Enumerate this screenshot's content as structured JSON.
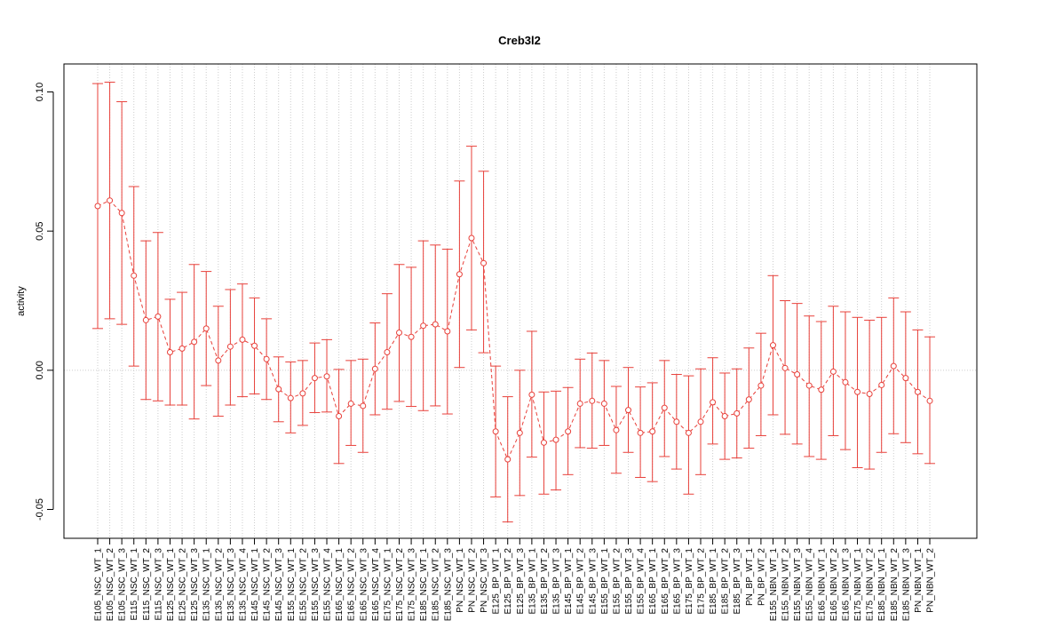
{
  "chart_data": {
    "type": "line",
    "title": "Creb3l2",
    "xlabel": "",
    "ylabel": "activity",
    "ylim": [
      -0.06,
      0.11
    ],
    "yticks": [
      -0.05,
      0.0,
      0.05,
      0.1
    ],
    "ytick_labels": [
      "-0.05",
      "0.00",
      "0.05",
      "0.10"
    ],
    "grid": true,
    "zero_line": true,
    "colors": {
      "series": "#e8403a",
      "grid": "#cccccc",
      "axis": "#000000"
    },
    "categories": [
      "E105_NSC_WT_1",
      "E105_NSC_WT_2",
      "E105_NSC_WT_3",
      "E115_NSC_WT_1",
      "E115_NSC_WT_2",
      "E115_NSC_WT_3",
      "E125_NSC_WT_1",
      "E125_NSC_WT_2",
      "E125_NSC_WT_3",
      "E135_NSC_WT_1",
      "E135_NSC_WT_2",
      "E135_NSC_WT_3",
      "E135_NSC_WT_4",
      "E145_NSC_WT_1",
      "E145_NSC_WT_2",
      "E145_NSC_WT_3",
      "E155_NSC_WT_1",
      "E155_NSC_WT_2",
      "E155_NSC_WT_3",
      "E155_NSC_WT_4",
      "E165_NSC_WT_1",
      "E165_NSC_WT_2",
      "E165_NSC_WT_3",
      "E165_NSC_WT_4",
      "E175_NSC_WT_1",
      "E175_NSC_WT_2",
      "E175_NSC_WT_3",
      "E185_NSC_WT_1",
      "E185_NSC_WT_2",
      "E185_NSC_WT_3",
      "PN_NSC_WT_1",
      "PN_NSC_WT_2",
      "PN_NSC_WT_3",
      "E125_BP_WT_1",
      "E125_BP_WT_2",
      "E125_BP_WT_3",
      "E135_BP_WT_1",
      "E135_BP_WT_2",
      "E135_BP_WT_3",
      "E145_BP_WT_1",
      "E145_BP_WT_2",
      "E145_BP_WT_3",
      "E155_BP_WT_1",
      "E155_BP_WT_2",
      "E155_BP_WT_3",
      "E155_BP_WT_4",
      "E165_BP_WT_1",
      "E165_BP_WT_2",
      "E165_BP_WT_3",
      "E175_BP_WT_1",
      "E175_BP_WT_2",
      "E185_BP_WT_1",
      "E185_BP_WT_2",
      "E185_BP_WT_3",
      "PN_BP_WT_1",
      "PN_BP_WT_2",
      "E155_NBN_WT_1",
      "E155_NBN_WT_2",
      "E155_NBN_WT_3",
      "E155_NBN_WT_4",
      "E165_NBN_WT_1",
      "E165_NBN_WT_2",
      "E165_NBN_WT_3",
      "E175_NBN_WT_1",
      "E175_NBN_WT_2",
      "E185_NBN_WT_1",
      "E185_NBN_WT_2",
      "E185_NBN_WT_3",
      "PN_NBN_WT_1",
      "PN_NBN_WT_2"
    ],
    "values": [
      0.059,
      0.061,
      0.0565,
      0.034,
      0.018,
      0.0193,
      0.0065,
      0.0078,
      0.0102,
      0.015,
      0.0035,
      0.0085,
      0.011,
      0.0088,
      0.004,
      -0.0068,
      -0.01,
      -0.0083,
      -0.0028,
      -0.0022,
      -0.0165,
      -0.012,
      -0.0128,
      0.0005,
      0.0065,
      0.0135,
      0.012,
      0.016,
      0.0165,
      0.014,
      0.0345,
      0.0475,
      0.0385,
      -0.022,
      -0.032,
      -0.0225,
      -0.0088,
      -0.026,
      -0.025,
      -0.022,
      -0.012,
      -0.011,
      -0.012,
      -0.0215,
      -0.0143,
      -0.0225,
      -0.022,
      -0.0135,
      -0.0185,
      -0.0225,
      -0.0185,
      -0.0115,
      -0.0165,
      -0.0155,
      -0.0105,
      -0.0055,
      0.009,
      0.0008,
      -0.0015,
      -0.0055,
      -0.007,
      -0.0005,
      -0.0043,
      -0.0078,
      -0.0085,
      -0.0053,
      0.0015,
      -0.0028,
      -0.0078,
      -0.011
    ],
    "lower": [
      0.015,
      0.0185,
      0.0165,
      0.0015,
      -0.0105,
      -0.011,
      -0.0125,
      -0.0125,
      -0.0175,
      -0.0055,
      -0.0165,
      -0.0125,
      -0.0095,
      -0.0085,
      -0.0105,
      -0.0185,
      -0.0225,
      -0.0198,
      -0.0152,
      -0.015,
      -0.0335,
      -0.027,
      -0.0295,
      -0.016,
      -0.014,
      -0.0112,
      -0.013,
      -0.0145,
      -0.0128,
      -0.0157,
      0.001,
      0.0145,
      0.0063,
      -0.0455,
      -0.0545,
      -0.045,
      -0.0312,
      -0.0445,
      -0.043,
      -0.0375,
      -0.0278,
      -0.028,
      -0.027,
      -0.037,
      -0.0295,
      -0.0385,
      -0.04,
      -0.031,
      -0.0355,
      -0.0445,
      -0.0375,
      -0.0265,
      -0.032,
      -0.0315,
      -0.028,
      -0.0235,
      -0.016,
      -0.023,
      -0.0265,
      -0.031,
      -0.032,
      -0.0235,
      -0.0285,
      -0.035,
      -0.0355,
      -0.0295,
      -0.0228,
      -0.026,
      -0.03,
      -0.0335
    ],
    "upper": [
      0.103,
      0.1035,
      0.0965,
      0.066,
      0.0465,
      0.0495,
      0.0255,
      0.028,
      0.038,
      0.0355,
      0.023,
      0.029,
      0.031,
      0.026,
      0.0185,
      0.0048,
      0.003,
      0.0035,
      0.0098,
      0.011,
      0.0003,
      0.0035,
      0.004,
      0.017,
      0.0275,
      0.038,
      0.037,
      0.0465,
      0.045,
      0.0435,
      0.068,
      0.0805,
      0.0715,
      0.0015,
      -0.0095,
      0.0,
      0.014,
      -0.0078,
      -0.0075,
      -0.0062,
      0.004,
      0.0062,
      0.0035,
      -0.0058,
      0.001,
      -0.006,
      -0.0045,
      0.0035,
      -0.0015,
      -0.002,
      0.0005,
      0.0045,
      -0.001,
      0.0005,
      0.008,
      0.0133,
      0.034,
      0.025,
      0.024,
      0.0195,
      0.0175,
      0.023,
      0.021,
      0.019,
      0.018,
      0.019,
      0.026,
      0.021,
      0.0145,
      0.012
    ]
  }
}
